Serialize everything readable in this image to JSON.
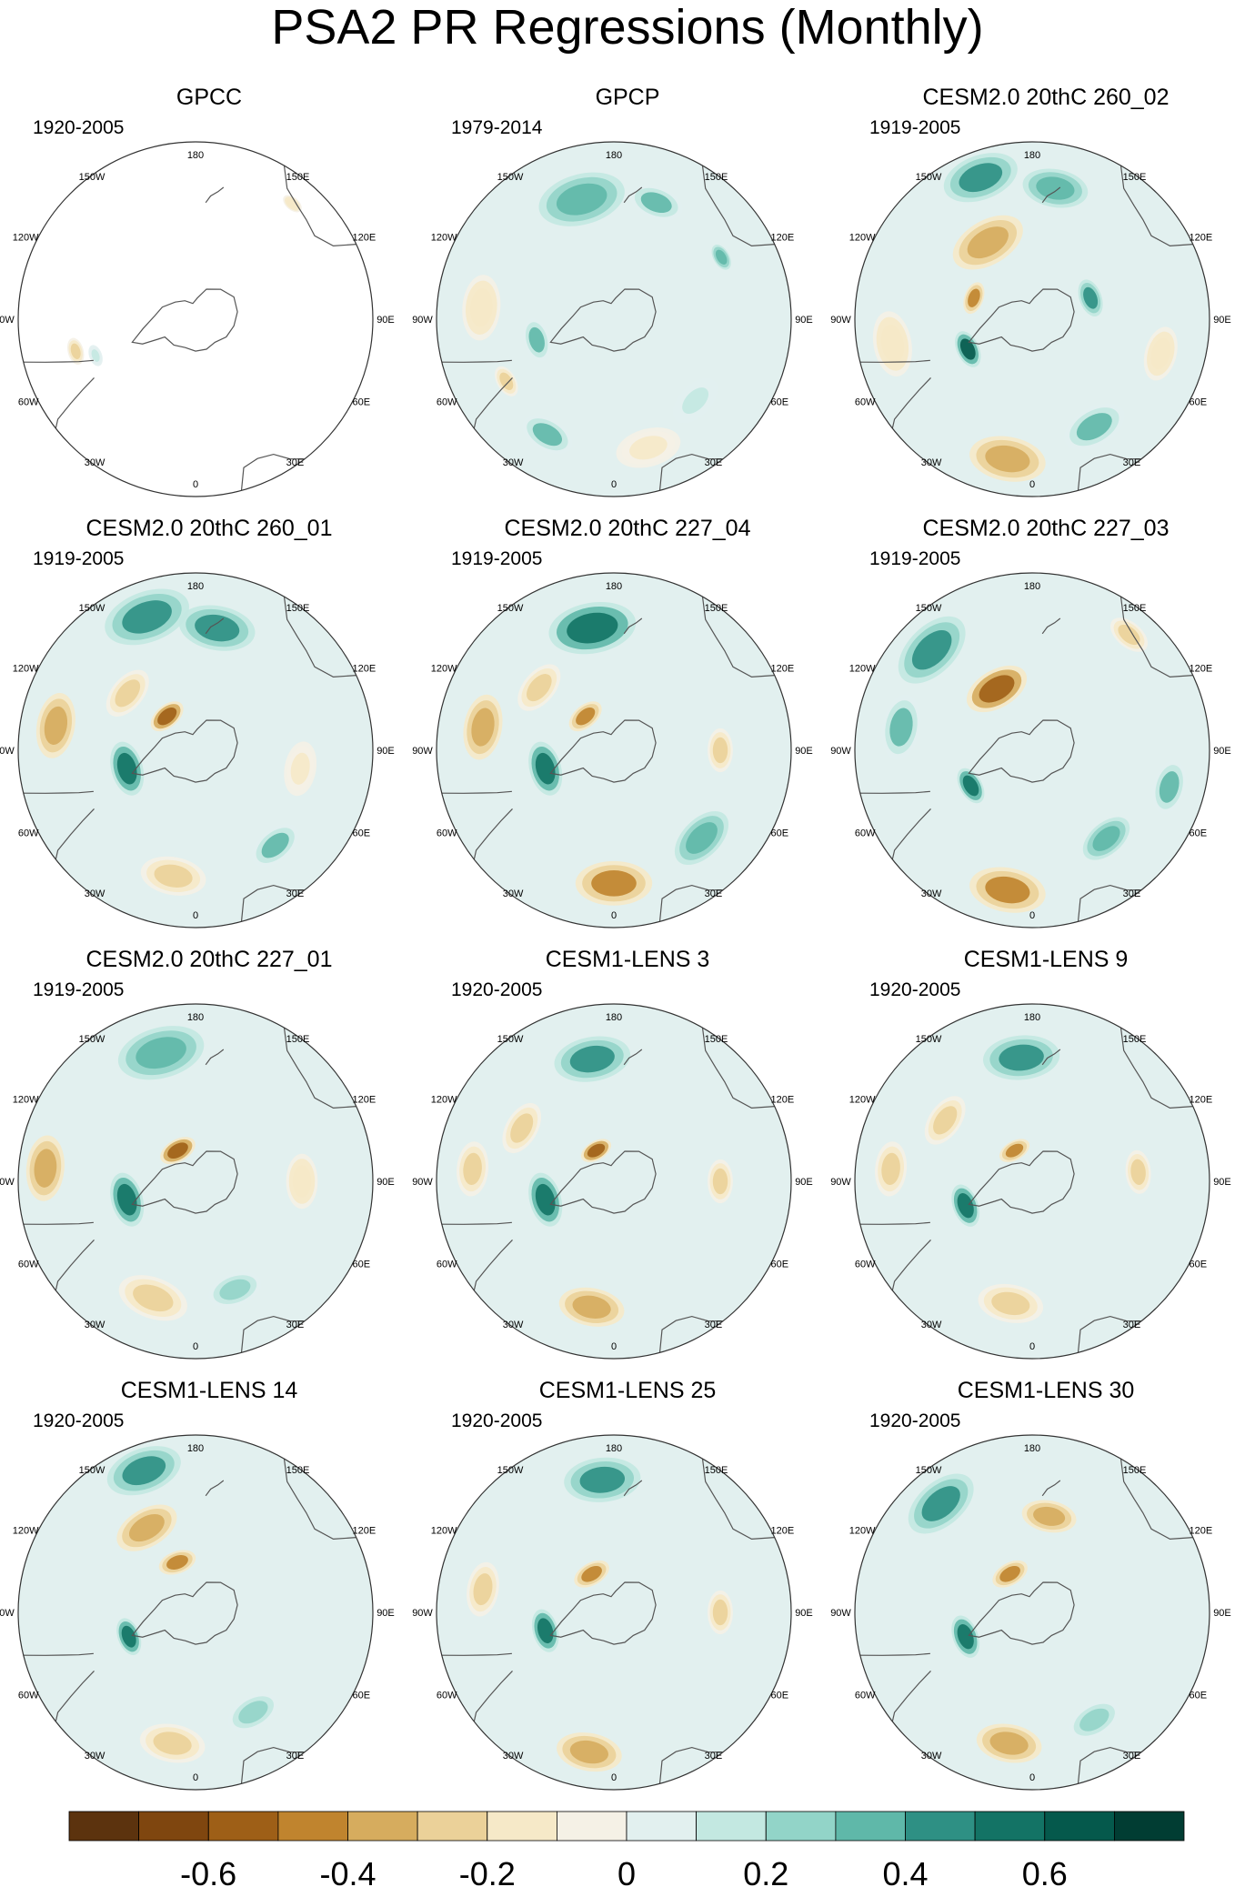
{
  "title": "PSA2 PR Regressions (Monthly)",
  "lon_labels": [
    "0",
    "30E",
    "60E",
    "90E",
    "120E",
    "150E",
    "180",
    "150W",
    "120W",
    "90W",
    "60W",
    "30W"
  ],
  "panels": [
    {
      "title": "GPCC",
      "years": "1920-2005",
      "coverage": "land-only",
      "features": [
        {
          "lon": -75,
          "colat": 0.7,
          "val": -0.25,
          "size": 0.05
        },
        {
          "lon": -70,
          "colat": 0.6,
          "val": 0.15,
          "size": 0.04
        },
        {
          "lon": 140,
          "colat": 0.85,
          "val": -0.2,
          "size": 0.04
        }
      ]
    },
    {
      "title": "GPCP",
      "years": "1979-2014",
      "coverage": "full",
      "features": [
        {
          "lon": -30,
          "colat": 0.75,
          "val": 0.3,
          "size": 0.1
        },
        {
          "lon": 15,
          "colat": 0.75,
          "val": -0.15,
          "size": 0.12
        },
        {
          "lon": 45,
          "colat": 0.65,
          "val": 0.15,
          "size": 0.1
        },
        {
          "lon": -95,
          "colat": 0.75,
          "val": -0.2,
          "size": 0.12
        },
        {
          "lon": -75,
          "colat": 0.45,
          "val": 0.3,
          "size": 0.08
        },
        {
          "lon": -165,
          "colat": 0.7,
          "val": 0.35,
          "size": 0.16
        },
        {
          "lon": 160,
          "colat": 0.7,
          "val": 0.3,
          "size": 0.1
        },
        {
          "lon": 120,
          "colat": 0.7,
          "val": 0.35,
          "size": 0.05
        },
        {
          "lon": -60,
          "colat": 0.7,
          "val": -0.25,
          "size": 0.06
        }
      ]
    },
    {
      "title": "CESM2.0 20thC 260_02",
      "years": "1919-2005",
      "coverage": "full",
      "features": [
        {
          "lon": -10,
          "colat": 0.8,
          "val": -0.4,
          "size": 0.14
        },
        {
          "lon": 30,
          "colat": 0.7,
          "val": 0.3,
          "size": 0.12
        },
        {
          "lon": 75,
          "colat": 0.75,
          "val": -0.2,
          "size": 0.1
        },
        {
          "lon": -65,
          "colat": 0.4,
          "val": 0.6,
          "size": 0.07
        },
        {
          "lon": -110,
          "colat": 0.35,
          "val": -0.5,
          "size": 0.06
        },
        {
          "lon": 110,
          "colat": 0.35,
          "val": 0.45,
          "size": 0.07
        },
        {
          "lon": -150,
          "colat": 0.5,
          "val": -0.35,
          "size": 0.14
        },
        {
          "lon": -160,
          "colat": 0.85,
          "val": 0.4,
          "size": 0.14
        },
        {
          "lon": 170,
          "colat": 0.75,
          "val": 0.35,
          "size": 0.12
        },
        {
          "lon": -80,
          "colat": 0.8,
          "val": -0.2,
          "size": 0.12
        }
      ]
    },
    {
      "title": "CESM2.0 20thC 260_01",
      "years": "1919-2005",
      "coverage": "full",
      "features": [
        {
          "lon": -10,
          "colat": 0.72,
          "val": -0.3,
          "size": 0.12
        },
        {
          "lon": 40,
          "colat": 0.7,
          "val": 0.3,
          "size": 0.1
        },
        {
          "lon": -75,
          "colat": 0.4,
          "val": 0.55,
          "size": 0.1
        },
        {
          "lon": -140,
          "colat": 0.25,
          "val": -0.55,
          "size": 0.07
        },
        {
          "lon": -100,
          "colat": 0.8,
          "val": -0.35,
          "size": 0.12
        },
        {
          "lon": -160,
          "colat": 0.8,
          "val": 0.4,
          "size": 0.16
        },
        {
          "lon": 170,
          "colat": 0.7,
          "val": 0.45,
          "size": 0.14
        },
        {
          "lon": -130,
          "colat": 0.5,
          "val": -0.3,
          "size": 0.1
        },
        {
          "lon": 80,
          "colat": 0.6,
          "val": -0.15,
          "size": 0.1
        }
      ]
    },
    {
      "title": "CESM2.0 20thC 227_04",
      "years": "1919-2005",
      "coverage": "full",
      "features": [
        {
          "lon": 0,
          "colat": 0.75,
          "val": -0.45,
          "size": 0.14
        },
        {
          "lon": 45,
          "colat": 0.7,
          "val": 0.35,
          "size": 0.12
        },
        {
          "lon": -75,
          "colat": 0.4,
          "val": 0.55,
          "size": 0.1
        },
        {
          "lon": -140,
          "colat": 0.25,
          "val": -0.5,
          "size": 0.07
        },
        {
          "lon": -100,
          "colat": 0.75,
          "val": -0.35,
          "size": 0.12
        },
        {
          "lon": -170,
          "colat": 0.7,
          "val": 0.55,
          "size": 0.16
        },
        {
          "lon": 90,
          "colat": 0.6,
          "val": -0.25,
          "size": 0.08
        },
        {
          "lon": -130,
          "colat": 0.55,
          "val": -0.3,
          "size": 0.1
        }
      ]
    },
    {
      "title": "CESM2.0 20thC 227_03",
      "years": "1919-2005",
      "coverage": "full",
      "features": [
        {
          "lon": -10,
          "colat": 0.8,
          "val": -0.45,
          "size": 0.14
        },
        {
          "lon": 40,
          "colat": 0.65,
          "val": 0.35,
          "size": 0.1
        },
        {
          "lon": 75,
          "colat": 0.8,
          "val": 0.3,
          "size": 0.1
        },
        {
          "lon": -60,
          "colat": 0.4,
          "val": 0.55,
          "size": 0.07
        },
        {
          "lon": -150,
          "colat": 0.4,
          "val": -0.55,
          "size": 0.12
        },
        {
          "lon": -135,
          "colat": 0.8,
          "val": 0.45,
          "size": 0.15
        },
        {
          "lon": -100,
          "colat": 0.75,
          "val": 0.3,
          "size": 0.12
        },
        {
          "lon": 140,
          "colat": 0.85,
          "val": -0.3,
          "size": 0.08
        }
      ]
    },
    {
      "title": "CESM2.0 20thC 227_01",
      "years": "1919-2005",
      "coverage": "full",
      "features": [
        {
          "lon": -20,
          "colat": 0.7,
          "val": -0.3,
          "size": 0.13
        },
        {
          "lon": -75,
          "colat": 0.4,
          "val": 0.55,
          "size": 0.1
        },
        {
          "lon": -150,
          "colat": 0.2,
          "val": -0.55,
          "size": 0.07
        },
        {
          "lon": -95,
          "colat": 0.85,
          "val": -0.35,
          "size": 0.12
        },
        {
          "lon": -165,
          "colat": 0.75,
          "val": 0.35,
          "size": 0.16
        },
        {
          "lon": 20,
          "colat": 0.65,
          "val": 0.2,
          "size": 0.1
        },
        {
          "lon": 90,
          "colat": 0.6,
          "val": -0.2,
          "size": 0.1
        }
      ]
    },
    {
      "title": "CESM1-LENS 3",
      "years": "1920-2005",
      "coverage": "full",
      "features": [
        {
          "lon": -10,
          "colat": 0.72,
          "val": -0.35,
          "size": 0.12
        },
        {
          "lon": -75,
          "colat": 0.4,
          "val": 0.55,
          "size": 0.1
        },
        {
          "lon": -150,
          "colat": 0.2,
          "val": -0.55,
          "size": 0.06
        },
        {
          "lon": -95,
          "colat": 0.8,
          "val": -0.3,
          "size": 0.1
        },
        {
          "lon": -170,
          "colat": 0.7,
          "val": 0.45,
          "size": 0.14
        },
        {
          "lon": 90,
          "colat": 0.6,
          "val": -0.25,
          "size": 0.08
        },
        {
          "lon": -120,
          "colat": 0.6,
          "val": -0.25,
          "size": 0.1
        }
      ]
    },
    {
      "title": "CESM1-LENS 9",
      "years": "1920-2005",
      "coverage": "full",
      "features": [
        {
          "lon": -10,
          "colat": 0.7,
          "val": -0.3,
          "size": 0.12
        },
        {
          "lon": -70,
          "colat": 0.4,
          "val": 0.5,
          "size": 0.08
        },
        {
          "lon": -150,
          "colat": 0.2,
          "val": -0.5,
          "size": 0.06
        },
        {
          "lon": -95,
          "colat": 0.8,
          "val": -0.3,
          "size": 0.1
        },
        {
          "lon": -175,
          "colat": 0.7,
          "val": 0.45,
          "size": 0.14
        },
        {
          "lon": 95,
          "colat": 0.6,
          "val": -0.3,
          "size": 0.08
        },
        {
          "lon": -125,
          "colat": 0.6,
          "val": -0.25,
          "size": 0.1
        }
      ]
    },
    {
      "title": "CESM1-LENS 14",
      "years": "1920-2005",
      "coverage": "full",
      "features": [
        {
          "lon": -10,
          "colat": 0.75,
          "val": -0.3,
          "size": 0.12
        },
        {
          "lon": -70,
          "colat": 0.4,
          "val": 0.55,
          "size": 0.07
        },
        {
          "lon": -160,
          "colat": 0.3,
          "val": -0.5,
          "size": 0.07
        },
        {
          "lon": -150,
          "colat": 0.55,
          "val": -0.4,
          "size": 0.12
        },
        {
          "lon": -160,
          "colat": 0.85,
          "val": 0.4,
          "size": 0.14
        },
        {
          "lon": 30,
          "colat": 0.65,
          "val": 0.25,
          "size": 0.1
        }
      ]
    },
    {
      "title": "CESM1-LENS 25",
      "years": "1920-2005",
      "coverage": "full",
      "features": [
        {
          "lon": -10,
          "colat": 0.8,
          "val": -0.35,
          "size": 0.12
        },
        {
          "lon": -75,
          "colat": 0.4,
          "val": 0.5,
          "size": 0.08
        },
        {
          "lon": -150,
          "colat": 0.25,
          "val": -0.5,
          "size": 0.07
        },
        {
          "lon": -100,
          "colat": 0.75,
          "val": -0.25,
          "size": 0.1
        },
        {
          "lon": -175,
          "colat": 0.75,
          "val": 0.4,
          "size": 0.14
        },
        {
          "lon": 90,
          "colat": 0.6,
          "val": -0.25,
          "size": 0.08
        }
      ]
    },
    {
      "title": "CESM1-LENS 30",
      "years": "1920-2005",
      "coverage": "full",
      "features": [
        {
          "lon": -10,
          "colat": 0.75,
          "val": -0.35,
          "size": 0.12
        },
        {
          "lon": -70,
          "colat": 0.4,
          "val": 0.55,
          "size": 0.08
        },
        {
          "lon": -150,
          "colat": 0.25,
          "val": -0.5,
          "size": 0.07
        },
        {
          "lon": 170,
          "colat": 0.55,
          "val": -0.35,
          "size": 0.1
        },
        {
          "lon": -140,
          "colat": 0.8,
          "val": 0.4,
          "size": 0.14
        },
        {
          "lon": 30,
          "colat": 0.7,
          "val": 0.25,
          "size": 0.1
        }
      ]
    }
  ],
  "chart_data": {
    "type": "heatmap",
    "title": "PSA2 PR Regressions (Monthly)",
    "projection": "south-polar-stereographic",
    "colorbar": {
      "levels": [
        -0.7,
        -0.6,
        -0.5,
        -0.4,
        -0.3,
        -0.2,
        -0.1,
        0,
        0.1,
        0.2,
        0.3,
        0.4,
        0.5,
        0.6,
        0.7
      ],
      "colors": [
        "#5c330e",
        "#7f460f",
        "#9e5f17",
        "#c0842e",
        "#d6ac5e",
        "#ebd199",
        "#f6e9c8",
        "#f5f1e6",
        "#e2f0ef",
        "#c3e8e1",
        "#92d4c8",
        "#5fb8a9",
        "#2e9084",
        "#137365",
        "#05594c",
        "#013d33"
      ],
      "tick_labels": [
        "-0.6",
        "-0.4",
        "-0.2",
        "0",
        "0.2",
        "0.4",
        "0.6"
      ],
      "tick_values": [
        -0.6,
        -0.4,
        -0.2,
        0,
        0.2,
        0.4,
        0.6
      ]
    }
  }
}
